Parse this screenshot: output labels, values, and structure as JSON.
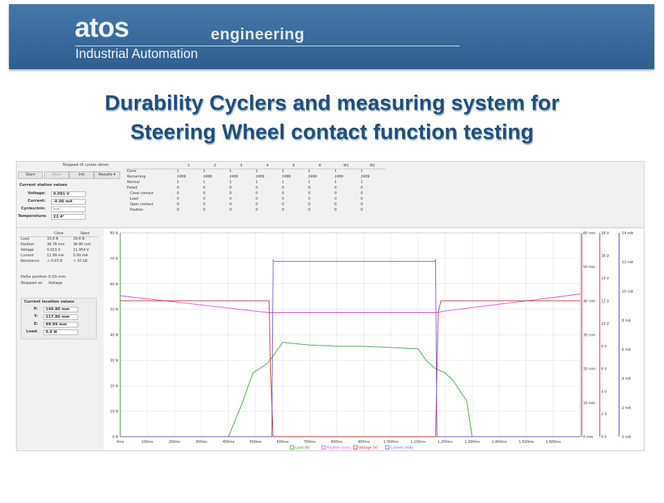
{
  "banner": {
    "brand": "atos",
    "brand_sub": "engineering",
    "tagline": "Industrial Automation",
    "bg_color": "#386a9b"
  },
  "title": {
    "line1": "Durability Cyclers and measuring system for",
    "line2": "Steering Wheel contact function testing",
    "color": "#1f4f7f"
  },
  "app": {
    "status": "Stopped (6 cycles done)",
    "buttons": {
      "start": "Start",
      "abort": "Abort",
      "init": "Init",
      "results": "Results ▾"
    },
    "station": {
      "title": "Current station values",
      "voltage_label": "Voltage:",
      "voltage": "0.091 V",
      "current_label": "Current:",
      "current": "-0.06 mA",
      "cycles_label": "Cycles/min:",
      "cycles": "----",
      "temperature_label": "Temperature:",
      "temperature": "22.4°"
    },
    "summary": {
      "columns": [
        "1",
        "2",
        "3",
        "4",
        "5",
        "6",
        "M1",
        "M2"
      ],
      "rows": [
        {
          "label": "Done",
          "values": [
            "1",
            "1",
            "1",
            "1",
            "1",
            "1",
            "1",
            "1"
          ]
        },
        {
          "label": "Remaining",
          "values": [
            "2499",
            "2499",
            "2499",
            "2499",
            "2499",
            "2499",
            "2499",
            "2499"
          ]
        },
        {
          "label": "Normal",
          "values": [
            "1",
            "1",
            "1",
            "1",
            "1",
            "1",
            "1",
            "1"
          ]
        },
        {
          "label": "Failed",
          "values": [
            "0",
            "0",
            "0",
            "0",
            "0",
            "0",
            "0",
            "0"
          ]
        },
        {
          "label": "Close contact",
          "values": [
            "0",
            "0",
            "0",
            "0",
            "0",
            "0",
            "0",
            "0"
          ]
        },
        {
          "label": "Load",
          "values": [
            "0",
            "0",
            "0",
            "0",
            "0",
            "0",
            "0",
            "0"
          ]
        },
        {
          "label": "Open contact",
          "values": [
            "0",
            "0",
            "0",
            "0",
            "0",
            "0",
            "0",
            "0"
          ]
        },
        {
          "label": "Position",
          "values": [
            "0",
            "0",
            "0",
            "0",
            "0",
            "0",
            "0",
            "0"
          ]
        }
      ]
    },
    "measurements": {
      "col_close": "Close",
      "col_open": "Open",
      "rows": [
        {
          "label": "Load",
          "close": "33.6 N",
          "open": "29.6 N"
        },
        {
          "label": "Position",
          "close": "36.78 mm",
          "open": "36.80 mm"
        },
        {
          "label": "Voltage",
          "close": "0.013 V",
          "open": "11.954 V"
        },
        {
          "label": "Current",
          "close": "11.99 mA",
          "open": "0.00 mA"
        },
        {
          "label": "Resistance",
          "close": "< 0.03 Ω",
          "open": "> 10 kΩ"
        }
      ],
      "delta_label": "Delta position",
      "delta": "0.03 mm",
      "stopped_label": "Stopped on",
      "stopped": "Voltage"
    },
    "location": {
      "title": "Current location values",
      "x_label": "X:",
      "x": "149.80 mm",
      "y_label": "Y:",
      "y": "217.80 mm",
      "z_label": "Z:",
      "z": "89.99 mm",
      "load_label": "Load:",
      "load": "0.0 N"
    }
  },
  "chart_data": {
    "type": "line",
    "x_ticks": [
      "0ms",
      "100ms",
      "200ms",
      "300ms",
      "400ms",
      "500ms",
      "600ms",
      "700ms",
      "800ms",
      "900ms",
      "1,000ms",
      "1,100ms",
      "1,200ms",
      "1,300ms",
      "1,400ms",
      "1,500ms",
      "1,600ms"
    ],
    "xlim": [
      0,
      1700
    ],
    "axes": {
      "load": {
        "ticks": [
          "0 N",
          "10 N",
          "20 N",
          "30 N",
          "40 N",
          "50 N",
          "60 N",
          "70 N",
          "80 N"
        ],
        "range": [
          0,
          80
        ]
      },
      "position": {
        "ticks": [
          "0 mm",
          "10 mm",
          "20 mm",
          "30 mm",
          "40 mm",
          "50 mm",
          "60 mm"
        ],
        "range": [
          0,
          60
        ]
      },
      "voltage": {
        "ticks": [
          "0 V",
          "2 V",
          "4 V",
          "6 V",
          "8 V",
          "10 V",
          "12 V",
          "14 V",
          "16 V",
          "18 V"
        ],
        "range": [
          0,
          18
        ]
      },
      "current": {
        "ticks": [
          "0 mA",
          "2 mA",
          "4 mA",
          "6 mA",
          "8 mA",
          "10 mA",
          "12 mA",
          "14 mA"
        ],
        "range": [
          0,
          15
        ]
      }
    },
    "series": [
      {
        "name": "Load (N)",
        "axis": "load",
        "color": "#2e9a2e",
        "x": [
          0,
          400,
          450,
          490,
          520,
          545,
          560,
          580,
          600,
          650,
          700,
          800,
          900,
          1000,
          1100,
          1130,
          1160,
          1200,
          1230,
          1280,
          1300,
          1700
        ],
        "y": [
          0,
          0,
          13,
          25,
          27,
          29,
          31,
          34,
          37,
          36.5,
          36,
          35.5,
          35.5,
          35,
          34.5,
          30,
          27,
          25,
          22,
          14,
          0,
          0
        ]
      },
      {
        "name": "Position (mm)",
        "axis": "position",
        "color": "#d43cd4",
        "x": [
          0,
          550,
          580,
          1170,
          1200,
          1700
        ],
        "y": [
          41.5,
          36.5,
          36.5,
          36.5,
          37,
          42
        ]
      },
      {
        "name": "Voltage (V)",
        "axis": "voltage",
        "color": "#cc2222",
        "x": [
          0,
          550,
          555,
          565,
          575,
          1160,
          1165,
          1175,
          1185,
          1700
        ],
        "y": [
          12,
          12,
          6,
          0,
          0,
          0,
          0,
          11,
          12,
          12
        ]
      },
      {
        "name": "Current (mA)",
        "axis": "current",
        "color": "#5b4fcf",
        "x": [
          0,
          560,
          565,
          570,
          1160,
          1165,
          1170,
          1700
        ],
        "y": [
          0,
          0,
          13,
          12.9,
          12.9,
          13,
          0,
          0
        ]
      }
    ],
    "legend": "bottom",
    "grid": true
  }
}
